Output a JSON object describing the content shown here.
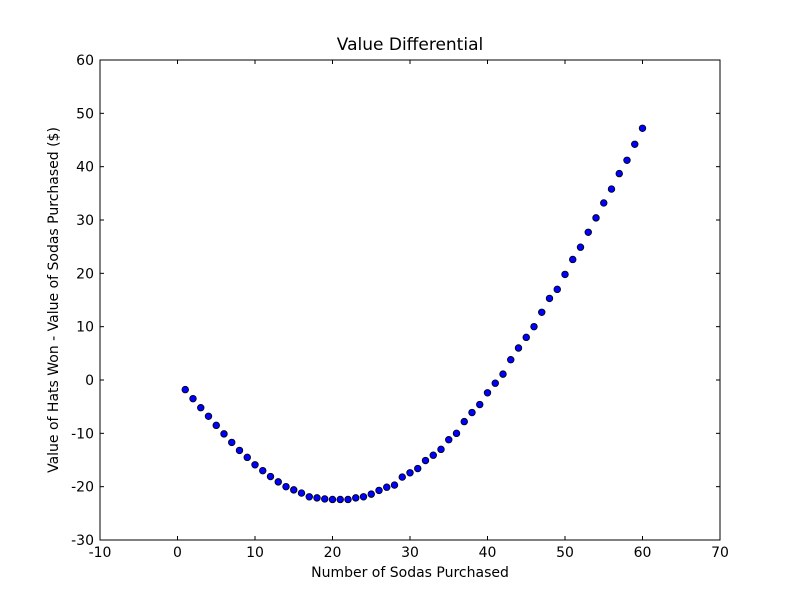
{
  "chart_data": {
    "type": "scatter",
    "title": "Value Differential",
    "xlabel": "Number of Sodas Purchased",
    "ylabel": "Value of Hats Won - Value of Sodas Purchased ($)",
    "xlim": [
      -10,
      70
    ],
    "ylim": [
      -30,
      60
    ],
    "xticks": [
      -10,
      0,
      10,
      20,
      30,
      40,
      50,
      60,
      70
    ],
    "yticks": [
      -30,
      -20,
      -10,
      0,
      10,
      20,
      30,
      40,
      50,
      60
    ],
    "grid": false,
    "marker_color": "#0000ff",
    "series": [
      {
        "x": [
          1,
          2,
          3,
          4,
          5,
          6,
          7,
          8,
          9,
          10,
          11,
          12,
          13,
          14,
          15,
          16,
          17,
          18,
          19,
          20,
          21,
          22,
          23,
          24,
          25,
          26,
          27,
          28,
          29,
          30,
          31,
          32,
          33,
          34,
          35,
          36,
          37,
          38,
          39,
          40,
          41,
          42,
          43,
          44,
          45,
          46,
          47,
          48,
          49,
          50,
          51,
          52,
          53,
          54,
          55,
          56,
          57,
          58,
          59,
          60
        ],
        "y": [
          -1.8,
          -3.5,
          -5.2,
          -6.8,
          -8.5,
          -10.1,
          -11.7,
          -13.2,
          -14.5,
          -15.9,
          -17.0,
          -18.1,
          -19.1,
          -20.0,
          -20.6,
          -21.2,
          -21.9,
          -22.1,
          -22.3,
          -22.4,
          -22.4,
          -22.4,
          -22.1,
          -21.9,
          -21.4,
          -20.7,
          -20.1,
          -19.7,
          -18.2,
          -17.4,
          -16.6,
          -15.1,
          -14.1,
          -13.0,
          -11.2,
          -10.0,
          -7.8,
          -6.1,
          -4.6,
          -2.4,
          -0.6,
          1.1,
          3.8,
          6.0,
          8.0,
          10.0,
          12.7,
          15.3,
          17.0,
          19.8,
          22.6,
          24.9,
          27.7,
          30.4,
          33.2,
          35.8,
          38.7,
          41.2,
          44.2,
          47.2
        ]
      }
    ]
  }
}
